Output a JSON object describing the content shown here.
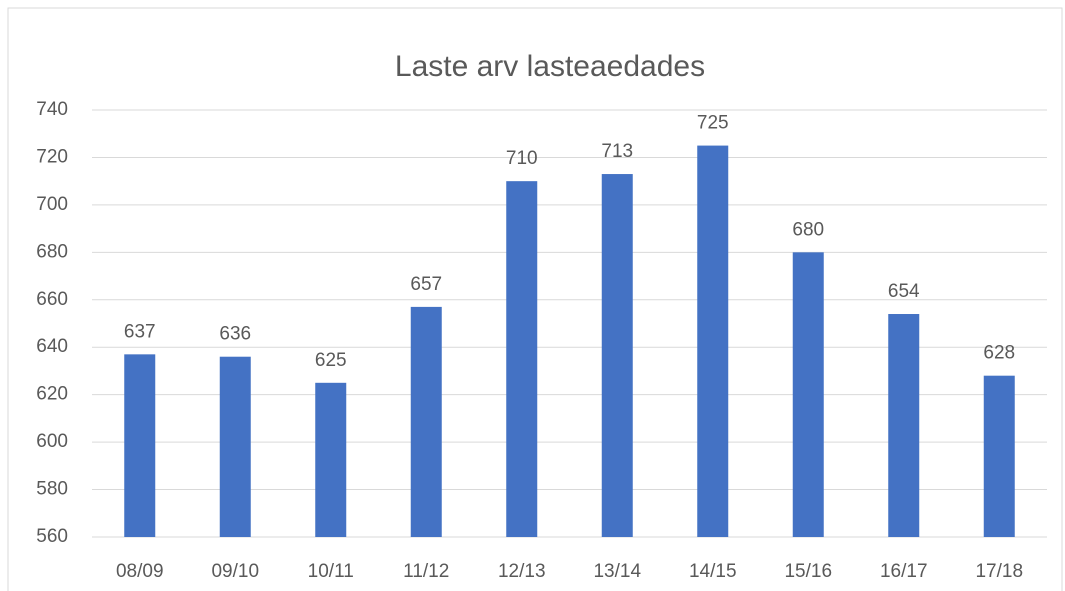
{
  "chart_data": {
    "type": "bar",
    "title": "Laste arv lasteaedades",
    "categories": [
      "08/09",
      "09/10",
      "10/11",
      "11/12",
      "12/13",
      "13/14",
      "14/15",
      "15/16",
      "16/17",
      "17/18"
    ],
    "values": [
      637,
      636,
      625,
      657,
      710,
      713,
      725,
      680,
      654,
      628
    ],
    "color": "#4472c4",
    "ylim": [
      560,
      740
    ],
    "yticks": [
      560,
      580,
      600,
      620,
      640,
      660,
      680,
      700,
      720,
      740
    ],
    "grid": true
  }
}
